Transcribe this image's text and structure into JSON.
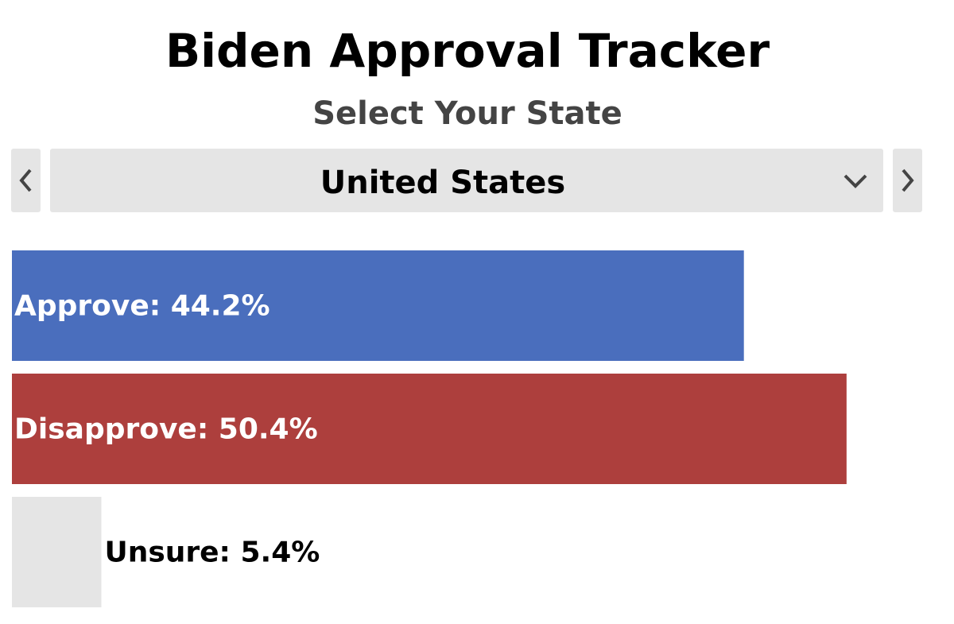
{
  "header": {
    "title": "Biden Approval Tracker",
    "subtitle": "Select Your State"
  },
  "selector": {
    "value": "United States"
  },
  "chart_data": {
    "type": "bar",
    "orientation": "horizontal",
    "values": [
      44.2,
      50.4,
      5.4
    ],
    "value_labels": [
      "Approve: 44.2%",
      "Disapprove: 50.4%",
      "Unsure: 5.4%"
    ],
    "colors": [
      "#4a6ebd",
      "#ad3f3d",
      "#e5e5e5"
    ],
    "xlim": [
      0,
      55.4
    ]
  }
}
